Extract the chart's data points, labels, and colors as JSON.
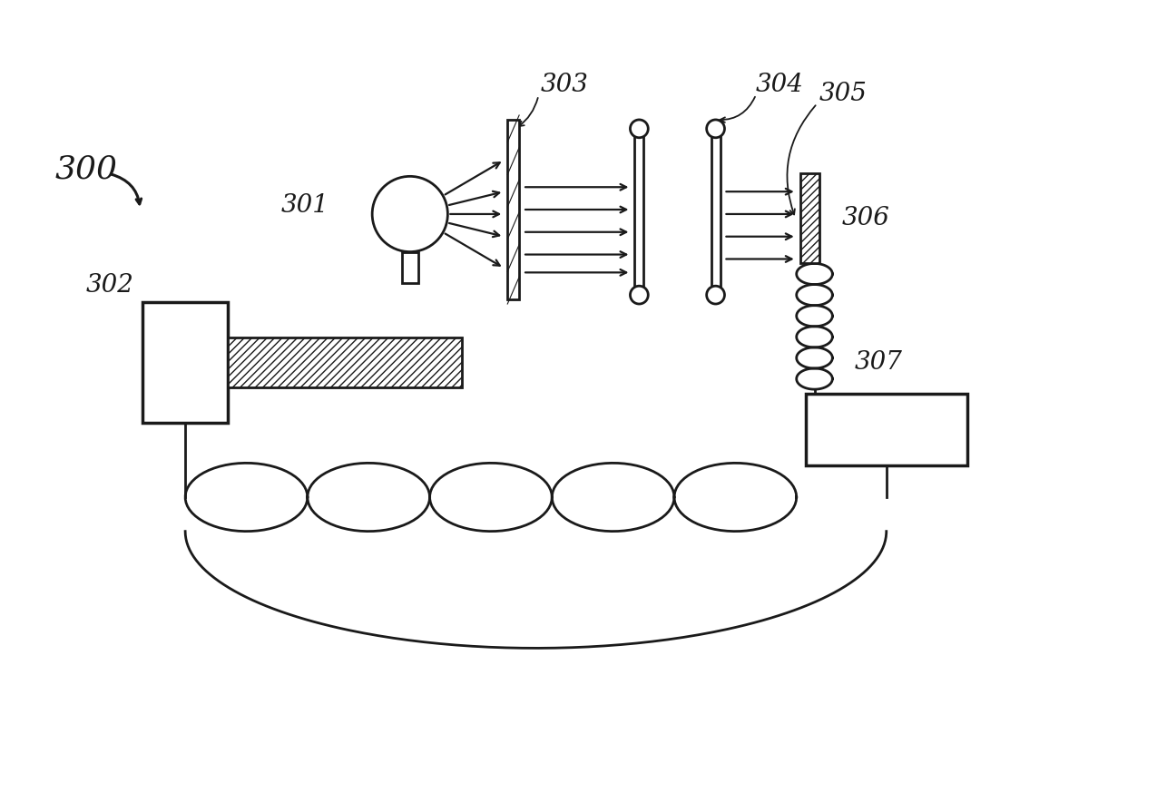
{
  "bg_color": "#ffffff",
  "line_color": "#1a1a1a",
  "label_300": "300",
  "label_301": "301",
  "label_302": "302",
  "label_303": "303",
  "label_304": "304",
  "label_305": "305",
  "label_306": "306",
  "label_307": "307",
  "font_size": 20
}
